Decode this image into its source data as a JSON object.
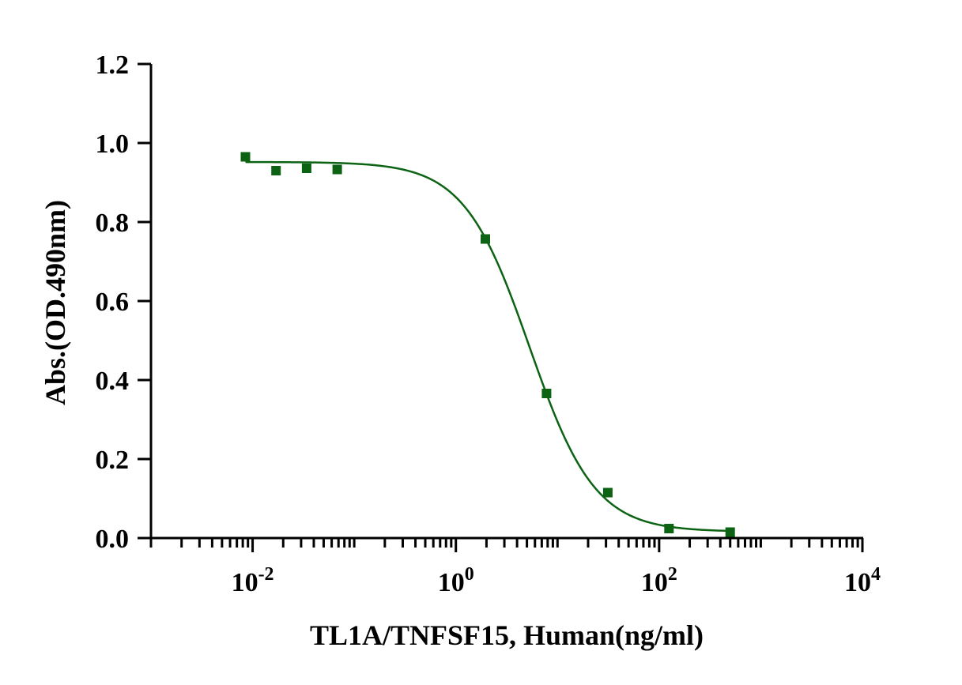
{
  "chart_data": {
    "type": "scatter",
    "xlabel": "TL1A/TNFSF15, Human(ng/ml)",
    "ylabel": "Abs.(OD.490nm)",
    "xscale": "log10",
    "xlim": [
      0.001,
      10000
    ],
    "ylim": [
      0,
      1.2
    ],
    "x_ticks": [
      {
        "base": "10",
        "exp": "-2"
      },
      {
        "base": "10",
        "exp": "0"
      },
      {
        "base": "10",
        "exp": "2"
      },
      {
        "base": "10",
        "exp": "4"
      }
    ],
    "y_ticks": [
      "0.0",
      "0.2",
      "0.4",
      "0.6",
      "0.8",
      "1.0",
      "1.2"
    ],
    "grid": false,
    "series": [
      {
        "color": "#0b6313",
        "marker": "square",
        "points": [
          {
            "x": 0.0085,
            "y": 0.965
          },
          {
            "x": 0.017,
            "y": 0.93
          },
          {
            "x": 0.034,
            "y": 0.936
          },
          {
            "x": 0.068,
            "y": 0.933
          },
          {
            "x": 1.95,
            "y": 0.757
          },
          {
            "x": 7.8,
            "y": 0.366
          },
          {
            "x": 31.25,
            "y": 0.115
          },
          {
            "x": 125,
            "y": 0.024
          },
          {
            "x": 500,
            "y": 0.015
          }
        ],
        "fit": {
          "model": "4PL",
          "top": 0.952,
          "bottom": 0.016,
          "ec50": 5.3,
          "hill": 1.35
        }
      }
    ]
  }
}
